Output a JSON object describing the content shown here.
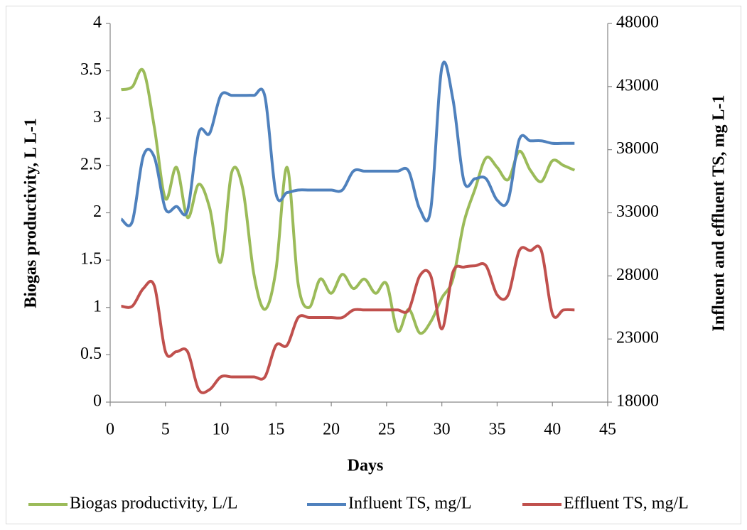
{
  "chart_data": {
    "type": "line",
    "x_label": "Days",
    "y_label": "Biogas productivity, L L-1",
    "y2_label": "Influent and effluent TS, mg L-1",
    "x": [
      1,
      2,
      3,
      4,
      5,
      6,
      7,
      8,
      9,
      10,
      11,
      12,
      13,
      14,
      15,
      16,
      17,
      18,
      19,
      20,
      21,
      22,
      23,
      24,
      25,
      26,
      27,
      28,
      29,
      30,
      31,
      32,
      33,
      34,
      35,
      36,
      37,
      38,
      39,
      40,
      41,
      42
    ],
    "xlim": [
      0,
      45
    ],
    "xticks": [
      0,
      5,
      10,
      15,
      20,
      25,
      30,
      35,
      40,
      45
    ],
    "ylim": [
      0,
      4
    ],
    "yticks": [
      0,
      0.5,
      1,
      1.5,
      2,
      2.5,
      3,
      3.5,
      4
    ],
    "y2lim": [
      18000,
      48000
    ],
    "y2ticks": [
      18000,
      23000,
      28000,
      33000,
      38000,
      43000,
      48000
    ],
    "legend": "bottom",
    "series": [
      {
        "name": "Biogas productivity, L/L",
        "color": "#9bbb59",
        "axis": "y",
        "values": [
          3.3,
          3.33,
          3.5,
          2.9,
          2.15,
          2.48,
          1.95,
          2.3,
          2.05,
          1.48,
          2.43,
          2.25,
          1.35,
          0.98,
          1.4,
          2.48,
          1.25,
          1.0,
          1.3,
          1.15,
          1.35,
          1.2,
          1.3,
          1.15,
          1.25,
          0.75,
          0.98,
          0.73,
          0.85,
          1.1,
          1.3,
          1.9,
          2.25,
          2.58,
          2.48,
          2.35,
          2.65,
          2.45,
          2.33,
          2.55,
          2.5,
          2.45
        ]
      },
      {
        "name": "Influent TS, mg/L",
        "color": "#4f81bd",
        "axis": "y2",
        "values": [
          32500,
          32300,
          37500,
          37400,
          33300,
          33500,
          33200,
          39300,
          39300,
          42300,
          42300,
          42300,
          42300,
          42200,
          34500,
          34600,
          34800,
          34800,
          34800,
          34800,
          34800,
          36300,
          36300,
          36300,
          36300,
          36300,
          36300,
          33300,
          33300,
          44500,
          42000,
          35500,
          35700,
          35700,
          34000,
          34000,
          38800,
          38700,
          38700,
          38500,
          38500,
          38500
        ]
      },
      {
        "name": "Effluent TS, mg/L",
        "color": "#c0504d",
        "axis": "y2",
        "values": [
          25600,
          25600,
          27000,
          27200,
          22000,
          22000,
          22000,
          19000,
          19000,
          20000,
          20000,
          20000,
          20000,
          20000,
          22500,
          22500,
          24700,
          24700,
          24700,
          24700,
          24700,
          25300,
          25300,
          25300,
          25300,
          25300,
          25300,
          28000,
          28000,
          23800,
          28300,
          28700,
          28800,
          28800,
          26500,
          26500,
          30000,
          30000,
          30000,
          25000,
          25300,
          25300
        ]
      }
    ]
  }
}
